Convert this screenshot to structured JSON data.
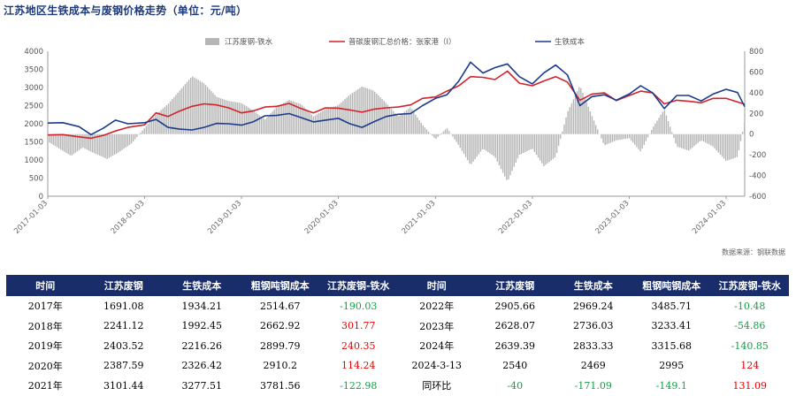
{
  "title": "江苏地区生铁成本与废钢价格走势（单位：元/吨）",
  "source": "数据来源：钢联数据",
  "colors": {
    "bar": "#b5b5b5",
    "scrap": "#d2222a",
    "iron": "#1a3b8c",
    "header_bg": "#1a2d6b",
    "positive": "#e60000",
    "negative": "#14a046"
  },
  "chart_data": {
    "type": "line",
    "x_tick_labels": [
      "2017-01-03",
      "2018-01-03",
      "2019-01-03",
      "2020-01-03",
      "2021-01-03",
      "2022-01-03",
      "2023-01-03",
      "2024-01-03"
    ],
    "x_range": [
      "2017-01-03",
      "2024-03-13"
    ],
    "y_left": {
      "min": 0,
      "max": 4000,
      "ticks": [
        0,
        500,
        1000,
        1500,
        2000,
        2500,
        3000,
        3500,
        4000
      ]
    },
    "y_right": {
      "min": -600,
      "max": 800,
      "ticks": [
        -600,
        -400,
        -200,
        0,
        200,
        400,
        600,
        800
      ]
    },
    "legend": {
      "placement": "top"
    },
    "series": [
      {
        "name": "江苏废钢-铁水",
        "axis": "right",
        "kind": "bar",
        "points": [
          [
            "2017-01-03",
            -70
          ],
          [
            "2017-02-15",
            -140
          ],
          [
            "2017-04-01",
            -210
          ],
          [
            "2017-05-15",
            -130
          ],
          [
            "2017-07-01",
            -190
          ],
          [
            "2017-08-15",
            -240
          ],
          [
            "2017-10-01",
            -170
          ],
          [
            "2017-11-15",
            -90
          ],
          [
            "2018-01-03",
            60
          ],
          [
            "2018-02-15",
            190
          ],
          [
            "2018-04-01",
            290
          ],
          [
            "2018-05-15",
            420
          ],
          [
            "2018-07-01",
            560
          ],
          [
            "2018-08-15",
            490
          ],
          [
            "2018-10-01",
            360
          ],
          [
            "2018-11-15",
            320
          ],
          [
            "2019-01-03",
            300
          ],
          [
            "2019-02-15",
            230
          ],
          [
            "2019-04-01",
            140
          ],
          [
            "2019-05-15",
            260
          ],
          [
            "2019-07-01",
            330
          ],
          [
            "2019-08-15",
            290
          ],
          [
            "2019-10-01",
            170
          ],
          [
            "2019-11-15",
            240
          ],
          [
            "2020-01-03",
            280
          ],
          [
            "2020-02-15",
            380
          ],
          [
            "2020-04-01",
            460
          ],
          [
            "2020-05-15",
            420
          ],
          [
            "2020-07-01",
            300
          ],
          [
            "2020-08-15",
            170
          ],
          [
            "2020-10-01",
            260
          ],
          [
            "2020-11-15",
            90
          ],
          [
            "2021-01-03",
            -50
          ],
          [
            "2021-02-15",
            60
          ],
          [
            "2021-04-01",
            -110
          ],
          [
            "2021-05-15",
            -300
          ],
          [
            "2021-07-01",
            -140
          ],
          [
            "2021-08-15",
            -220
          ],
          [
            "2021-10-01",
            -460
          ],
          [
            "2021-11-15",
            -200
          ],
          [
            "2022-01-03",
            -140
          ],
          [
            "2022-02-15",
            -310
          ],
          [
            "2022-04-01",
            -220
          ],
          [
            "2022-05-15",
            210
          ],
          [
            "2022-07-01",
            470
          ],
          [
            "2022-08-15",
            180
          ],
          [
            "2022-10-01",
            -110
          ],
          [
            "2022-11-15",
            -60
          ],
          [
            "2023-01-03",
            -40
          ],
          [
            "2023-02-15",
            -170
          ],
          [
            "2023-04-01",
            60
          ],
          [
            "2023-05-15",
            240
          ],
          [
            "2023-07-01",
            -120
          ],
          [
            "2023-08-15",
            -160
          ],
          [
            "2023-10-01",
            -60
          ],
          [
            "2023-11-15",
            -120
          ],
          [
            "2024-01-03",
            -260
          ],
          [
            "2024-02-15",
            -220
          ],
          [
            "2024-03-13",
            124
          ]
        ]
      },
      {
        "name": "普碳废钢汇总价格：张家港（Ⅰ）",
        "axis": "left",
        "kind": "line",
        "points": [
          [
            "2017-01-03",
            1690
          ],
          [
            "2017-03-01",
            1700
          ],
          [
            "2017-05-01",
            1640
          ],
          [
            "2017-06-15",
            1600
          ],
          [
            "2017-08-01",
            1680
          ],
          [
            "2017-09-15",
            1800
          ],
          [
            "2017-11-01",
            1900
          ],
          [
            "2018-01-03",
            1970
          ],
          [
            "2018-02-15",
            2300
          ],
          [
            "2018-04-01",
            2200
          ],
          [
            "2018-05-15",
            2350
          ],
          [
            "2018-07-01",
            2480
          ],
          [
            "2018-08-15",
            2550
          ],
          [
            "2018-10-01",
            2520
          ],
          [
            "2018-11-15",
            2440
          ],
          [
            "2019-01-03",
            2300
          ],
          [
            "2019-02-15",
            2350
          ],
          [
            "2019-04-01",
            2460
          ],
          [
            "2019-05-15",
            2480
          ],
          [
            "2019-07-01",
            2560
          ],
          [
            "2019-08-15",
            2420
          ],
          [
            "2019-10-01",
            2300
          ],
          [
            "2019-11-15",
            2440
          ],
          [
            "2020-01-03",
            2430
          ],
          [
            "2020-02-15",
            2380
          ],
          [
            "2020-04-01",
            2320
          ],
          [
            "2020-05-15",
            2400
          ],
          [
            "2020-07-01",
            2440
          ],
          [
            "2020-08-15",
            2460
          ],
          [
            "2020-10-01",
            2520
          ],
          [
            "2020-11-15",
            2700
          ],
          [
            "2021-01-03",
            2740
          ],
          [
            "2021-02-15",
            2900
          ],
          [
            "2021-04-01",
            3050
          ],
          [
            "2021-05-15",
            3300
          ],
          [
            "2021-07-01",
            3280
          ],
          [
            "2021-08-15",
            3220
          ],
          [
            "2021-10-01",
            3450
          ],
          [
            "2021-11-15",
            3120
          ],
          [
            "2022-01-03",
            3050
          ],
          [
            "2022-02-15",
            3180
          ],
          [
            "2022-04-01",
            3300
          ],
          [
            "2022-05-15",
            3150
          ],
          [
            "2022-07-01",
            2650
          ],
          [
            "2022-08-15",
            2820
          ],
          [
            "2022-10-01",
            2850
          ],
          [
            "2022-11-15",
            2640
          ],
          [
            "2023-01-03",
            2780
          ],
          [
            "2023-02-15",
            2900
          ],
          [
            "2023-04-01",
            2850
          ],
          [
            "2023-05-15",
            2550
          ],
          [
            "2023-07-01",
            2650
          ],
          [
            "2023-08-15",
            2620
          ],
          [
            "2023-10-01",
            2580
          ],
          [
            "2023-11-15",
            2700
          ],
          [
            "2024-01-03",
            2700
          ],
          [
            "2024-02-15",
            2600
          ],
          [
            "2024-03-13",
            2540
          ]
        ]
      },
      {
        "name": "生铁成本",
        "axis": "left",
        "kind": "line",
        "points": [
          [
            "2017-01-03",
            2020
          ],
          [
            "2017-03-01",
            2030
          ],
          [
            "2017-05-01",
            1920
          ],
          [
            "2017-06-15",
            1700
          ],
          [
            "2017-08-01",
            1880
          ],
          [
            "2017-09-15",
            2100
          ],
          [
            "2017-11-01",
            2000
          ],
          [
            "2018-01-03",
            2030
          ],
          [
            "2018-02-15",
            2120
          ],
          [
            "2018-04-01",
            1900
          ],
          [
            "2018-05-15",
            1850
          ],
          [
            "2018-07-01",
            1830
          ],
          [
            "2018-08-15",
            1900
          ],
          [
            "2018-10-01",
            2010
          ],
          [
            "2018-11-15",
            2000
          ],
          [
            "2019-01-03",
            1960
          ],
          [
            "2019-02-15",
            2050
          ],
          [
            "2019-04-01",
            2220
          ],
          [
            "2019-05-15",
            2230
          ],
          [
            "2019-07-01",
            2280
          ],
          [
            "2019-08-15",
            2170
          ],
          [
            "2019-10-01",
            2050
          ],
          [
            "2019-11-15",
            2100
          ],
          [
            "2020-01-03",
            2150
          ],
          [
            "2020-02-15",
            2000
          ],
          [
            "2020-04-01",
            1900
          ],
          [
            "2020-05-15",
            2050
          ],
          [
            "2020-07-01",
            2200
          ],
          [
            "2020-08-15",
            2260
          ],
          [
            "2020-10-01",
            2280
          ],
          [
            "2020-11-15",
            2500
          ],
          [
            "2021-01-03",
            2700
          ],
          [
            "2021-02-15",
            2800
          ],
          [
            "2021-04-01",
            3180
          ],
          [
            "2021-05-15",
            3700
          ],
          [
            "2021-07-01",
            3400
          ],
          [
            "2021-08-15",
            3550
          ],
          [
            "2021-10-01",
            3650
          ],
          [
            "2021-11-15",
            3300
          ],
          [
            "2022-01-03",
            3100
          ],
          [
            "2022-02-15",
            3400
          ],
          [
            "2022-04-01",
            3620
          ],
          [
            "2022-05-15",
            3350
          ],
          [
            "2022-07-01",
            2500
          ],
          [
            "2022-08-15",
            2750
          ],
          [
            "2022-10-01",
            2800
          ],
          [
            "2022-11-15",
            2650
          ],
          [
            "2023-01-03",
            2820
          ],
          [
            "2023-02-15",
            3050
          ],
          [
            "2023-04-01",
            2850
          ],
          [
            "2023-05-15",
            2420
          ],
          [
            "2023-07-01",
            2780
          ],
          [
            "2023-08-15",
            2780
          ],
          [
            "2023-10-01",
            2630
          ],
          [
            "2023-11-15",
            2820
          ],
          [
            "2024-01-03",
            2950
          ],
          [
            "2024-02-15",
            2860
          ],
          [
            "2024-03-13",
            2470
          ]
        ]
      }
    ]
  },
  "table": {
    "headers": [
      "时间",
      "江苏废钢",
      "生铁成本",
      "粗钢吨钢成本",
      "江苏废钢-铁水",
      "时间",
      "江苏废钢",
      "生铁成本",
      "粗钢吨钢成本",
      "江苏废钢-铁水"
    ],
    "rows": [
      [
        {
          "v": "2017年"
        },
        {
          "v": "1691.08"
        },
        {
          "v": "1934.21"
        },
        {
          "v": "2514.67"
        },
        {
          "v": "-190.03",
          "s": "neg"
        },
        {
          "v": "2022年"
        },
        {
          "v": "2905.66"
        },
        {
          "v": "2969.24"
        },
        {
          "v": "3485.71"
        },
        {
          "v": "-10.48",
          "s": "neg"
        }
      ],
      [
        {
          "v": "2018年"
        },
        {
          "v": "2241.12"
        },
        {
          "v": "1992.45"
        },
        {
          "v": "2662.92"
        },
        {
          "v": "301.77",
          "s": "pos"
        },
        {
          "v": "2023年"
        },
        {
          "v": "2628.07"
        },
        {
          "v": "2736.03"
        },
        {
          "v": "3233.41"
        },
        {
          "v": "-54.86",
          "s": "neg"
        }
      ],
      [
        {
          "v": "2019年"
        },
        {
          "v": "2403.52"
        },
        {
          "v": "2216.26"
        },
        {
          "v": "2899.79"
        },
        {
          "v": "240.35",
          "s": "pos"
        },
        {
          "v": "2024年"
        },
        {
          "v": "2639.39"
        },
        {
          "v": "2833.33"
        },
        {
          "v": "3315.68"
        },
        {
          "v": "-140.85",
          "s": "neg"
        }
      ],
      [
        {
          "v": "2020年"
        },
        {
          "v": "2387.59"
        },
        {
          "v": "2326.42"
        },
        {
          "v": "2910.2"
        },
        {
          "v": "114.24",
          "s": "pos"
        },
        {
          "v": "2024-3-13"
        },
        {
          "v": "2540"
        },
        {
          "v": "2469"
        },
        {
          "v": "2995"
        },
        {
          "v": "124",
          "s": "pos"
        }
      ],
      [
        {
          "v": "2021年"
        },
        {
          "v": "3101.44"
        },
        {
          "v": "3277.51"
        },
        {
          "v": "3781.56"
        },
        {
          "v": "-122.98",
          "s": "neg"
        },
        {
          "v": "同环比"
        },
        {
          "v": "-40",
          "s": "neg"
        },
        {
          "v": "-171.09",
          "s": "neg"
        },
        {
          "v": "-149.1",
          "s": "neg"
        },
        {
          "v": "131.09",
          "s": "pos"
        }
      ]
    ]
  }
}
